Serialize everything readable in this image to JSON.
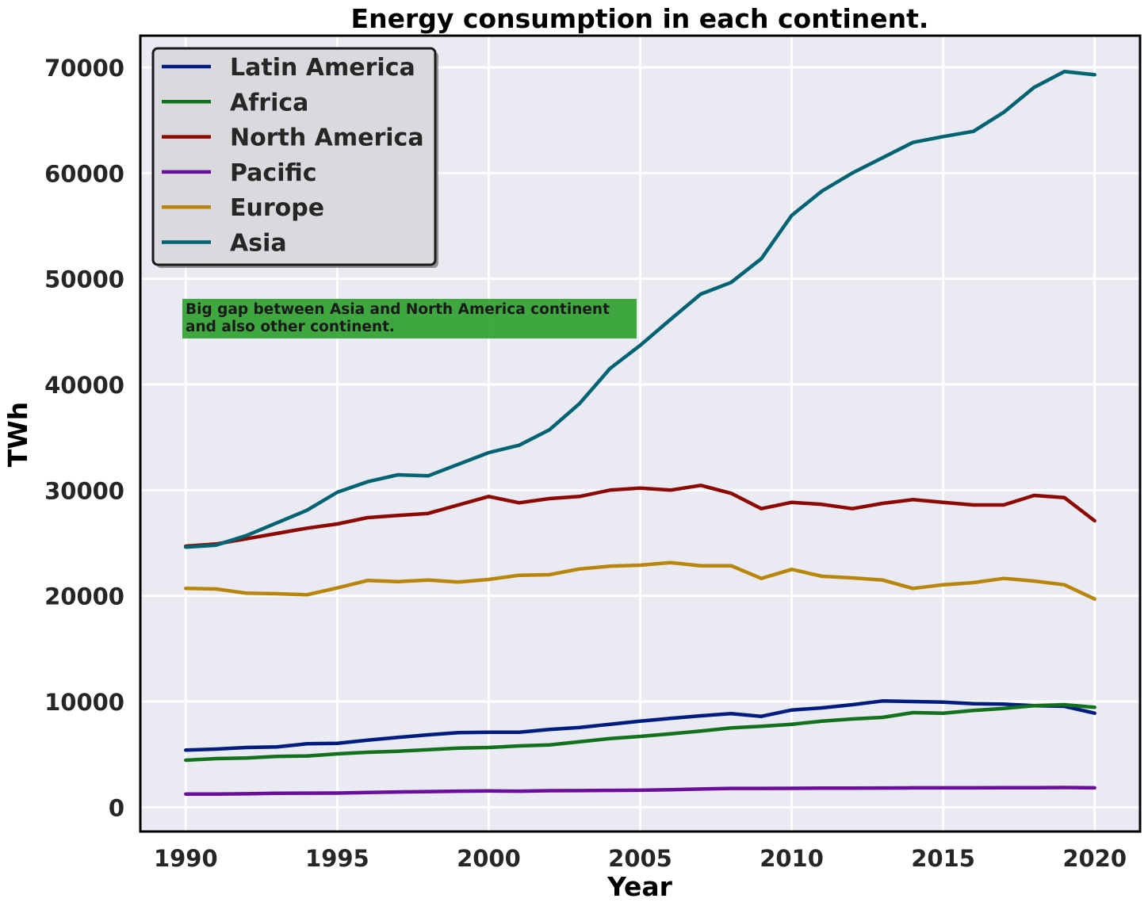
{
  "chart_data": {
    "type": "line",
    "title": "Energy consumption in each continent.",
    "xlabel": "Year",
    "ylabel": "TWh",
    "xlim": [
      1988.5,
      2021.5
    ],
    "ylim": [
      -2300,
      73000
    ],
    "xticks": [
      1990,
      1995,
      2000,
      2005,
      2010,
      2015,
      2020
    ],
    "yticks": [
      0,
      10000,
      20000,
      30000,
      40000,
      50000,
      60000,
      70000
    ],
    "grid": true,
    "legend_position": "top-left",
    "background_color": "#eaeaf2",
    "grid_color": "#ffffff",
    "x": [
      1990,
      1991,
      1992,
      1993,
      1994,
      1995,
      1996,
      1997,
      1998,
      1999,
      2000,
      2001,
      2002,
      2003,
      2004,
      2005,
      2006,
      2007,
      2008,
      2009,
      2010,
      2011,
      2012,
      2013,
      2014,
      2015,
      2016,
      2017,
      2018,
      2019,
      2020
    ],
    "series": [
      {
        "name": "Latin America",
        "color": "#001c7f",
        "values": [
          5400,
          5500,
          5650,
          5700,
          6000,
          6050,
          6350,
          6600,
          6850,
          7050,
          7100,
          7100,
          7350,
          7550,
          7850,
          8150,
          8400,
          8650,
          8850,
          8600,
          9200,
          9400,
          9700,
          10050,
          10000,
          9950,
          9800,
          9750,
          9600,
          9550,
          8900
        ]
      },
      {
        "name": "Africa",
        "color": "#12711c",
        "values": [
          4450,
          4600,
          4650,
          4800,
          4850,
          5050,
          5200,
          5300,
          5450,
          5600,
          5650,
          5800,
          5900,
          6200,
          6500,
          6700,
          6950,
          7200,
          7500,
          7650,
          7850,
          8150,
          8350,
          8500,
          8950,
          8900,
          9150,
          9350,
          9600,
          9700,
          9450
        ]
      },
      {
        "name": "North America",
        "color": "#8c0800",
        "values": [
          24700,
          24900,
          25400,
          25900,
          26400,
          26800,
          27400,
          27600,
          27800,
          28600,
          29400,
          28800,
          29200,
          29400,
          30000,
          30200,
          30000,
          30450,
          29700,
          28250,
          28850,
          28650,
          28250,
          28750,
          29100,
          28850,
          28600,
          28600,
          29500,
          29300,
          27100
        ]
      },
      {
        "name": "Pacific",
        "color": "#6a0f9c",
        "values": [
          1250,
          1250,
          1270,
          1320,
          1330,
          1340,
          1400,
          1440,
          1480,
          1520,
          1540,
          1520,
          1560,
          1570,
          1590,
          1610,
          1660,
          1720,
          1780,
          1780,
          1790,
          1800,
          1800,
          1820,
          1830,
          1830,
          1830,
          1850,
          1850,
          1860,
          1830
        ]
      },
      {
        "name": "Europe",
        "color": "#b8860b",
        "values": [
          20700,
          20650,
          20250,
          20200,
          20100,
          20750,
          21450,
          21350,
          21500,
          21300,
          21550,
          21950,
          22000,
          22550,
          22800,
          22900,
          23150,
          22850,
          22850,
          21650,
          22500,
          21850,
          21700,
          21500,
          20700,
          21050,
          21250,
          21650,
          21400,
          21050,
          19700
        ]
      },
      {
        "name": "Asia",
        "color": "#006374",
        "values": [
          24600,
          24800,
          25700,
          26900,
          28100,
          29800,
          30800,
          31450,
          31350,
          32450,
          33550,
          34250,
          35700,
          38200,
          41500,
          43700,
          46150,
          48550,
          49650,
          51900,
          56000,
          58300,
          60000,
          61450,
          62900,
          63450,
          63950,
          65750,
          68100,
          69600,
          69300
        ]
      }
    ],
    "annotation": {
      "line1": "Big gap between Asia and North America continent",
      "line2": "and also other continent.",
      "box_color": "#2ca02c"
    }
  }
}
